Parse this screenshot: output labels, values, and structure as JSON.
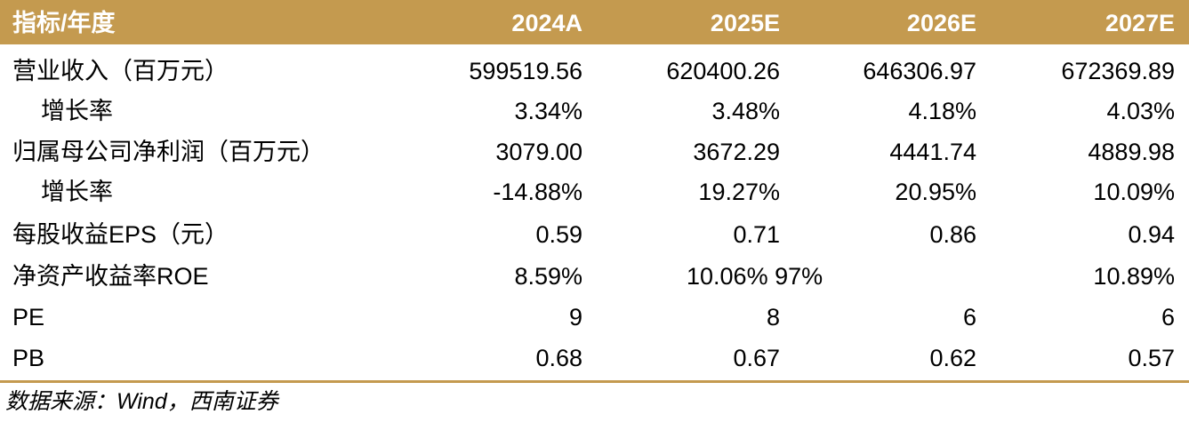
{
  "header": {
    "label": "指标/年度",
    "years": [
      "2024A",
      "2025E",
      "2026E",
      "2027E"
    ]
  },
  "rows": [
    {
      "label": "营业收入（百万元）",
      "values": [
        "599519.56",
        "620400.26",
        "646306.97",
        "672369.89"
      ]
    },
    {
      "label": "增长率",
      "values": [
        "3.34%",
        "3.48%",
        "4.18%",
        "4.03%"
      ]
    },
    {
      "label": "归属母公司净利润（百万元）",
      "values": [
        "3079.00",
        "3672.29",
        "4441.74",
        "4889.98"
      ]
    },
    {
      "label": "增长率",
      "values": [
        "-14.88%",
        "19.27%",
        "20.95%",
        "10.09%"
      ]
    },
    {
      "label": "每股收益EPS（元）",
      "values": [
        "0.59",
        "0.71",
        "0.86",
        "0.94"
      ]
    },
    {
      "label": "净资产收益率ROE",
      "values": [
        "8.59%",
        "10.06% 97%",
        "",
        "10.89%"
      ]
    },
    {
      "label": "PE",
      "values": [
        "9",
        "8",
        "6",
        "6"
      ]
    },
    {
      "label": "PB",
      "values": [
        "0.68",
        "0.67",
        "0.62",
        "0.57"
      ]
    }
  ],
  "source": "数据来源：Wind，西南证券",
  "colors": {
    "header_bg": "#c49a4f",
    "header_text": "#ffffff",
    "rule": "#c49a4f"
  }
}
